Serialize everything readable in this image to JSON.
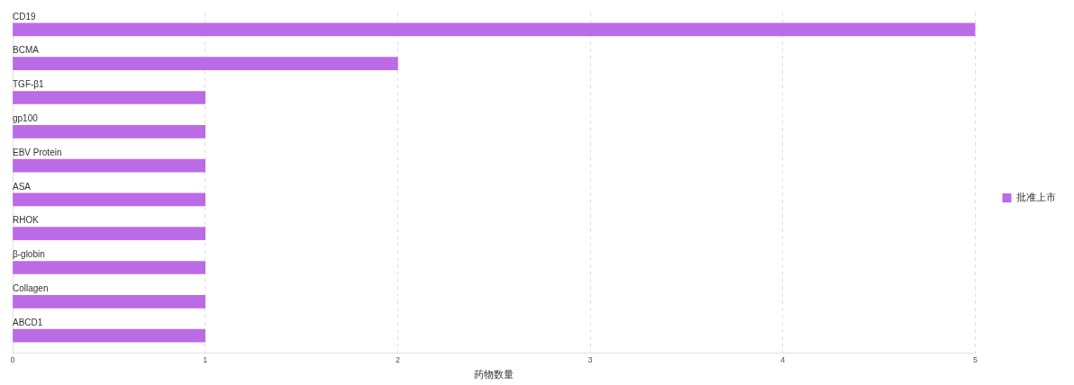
{
  "chart_data": {
    "type": "bar",
    "orientation": "horizontal",
    "xlabel": "药物数量",
    "categories": [
      "CD19",
      "BCMA",
      "TGF-β1",
      "gp100",
      "EBV Protein",
      "ASA",
      "RHOK",
      "β-globin",
      "Collagen",
      "ABCD1"
    ],
    "series": [
      {
        "name": "批准上市",
        "color": "#bb6be6",
        "values": [
          5,
          2,
          1,
          1,
          1,
          1,
          1,
          1,
          1,
          1
        ]
      }
    ],
    "xlim": [
      0,
      5
    ],
    "xticks": [
      0,
      1,
      2,
      3,
      4,
      5
    ],
    "grid": "x",
    "legend": "right"
  }
}
